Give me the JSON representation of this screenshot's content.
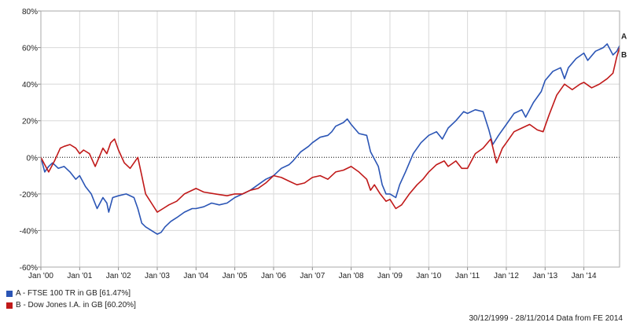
{
  "colors": {
    "series_a": "#2b55b5",
    "series_b": "#c01919",
    "grid": "#d8d8d8"
  },
  "legend": [
    {
      "label": "A - FTSE 100 TR in GB [61.47%]",
      "color": "#2b55b5"
    },
    {
      "label": "B - Dow Jones I.A. in GB [60.20%]",
      "color": "#c01919"
    }
  ],
  "footer": "30/12/1999 - 28/11/2014 Data from FE 2014",
  "chart_data": {
    "type": "line",
    "x_ticks": [
      "Jan '00",
      "Jan '01",
      "Jan '02",
      "Jan '03",
      "Jan '04",
      "Jan '05",
      "Jan '06",
      "Jan '07",
      "Jan '08",
      "Jan '09",
      "Jan '10",
      "Jan '11",
      "Jan '12",
      "Jan '13",
      "Jan '14"
    ],
    "y_ticks": [
      "-60%",
      "-40%",
      "-20%",
      "0%",
      "20%",
      "40%",
      "60%",
      "80%"
    ],
    "ylim": [
      -60,
      80
    ],
    "xlim": [
      2000.0,
      2014.92
    ],
    "zero_line": true,
    "grid": true,
    "end_labels": [
      "A",
      "B"
    ],
    "series": [
      {
        "name": "A - FTSE 100 TR in GB",
        "end_label": "A",
        "x": [
          2000.0,
          2000.1,
          2000.2,
          2000.3,
          2000.45,
          2000.6,
          2000.75,
          2000.9,
          2001.0,
          2001.15,
          2001.3,
          2001.45,
          2001.6,
          2001.7,
          2001.75,
          2001.85,
          2002.0,
          2002.2,
          2002.4,
          2002.5,
          2002.6,
          2002.7,
          2002.85,
          2003.0,
          2003.1,
          2003.2,
          2003.35,
          2003.5,
          2003.7,
          2003.9,
          2004.0,
          2004.2,
          2004.4,
          2004.6,
          2004.8,
          2005.0,
          2005.2,
          2005.4,
          2005.6,
          2005.8,
          2006.0,
          2006.2,
          2006.4,
          2006.5,
          2006.7,
          2006.9,
          2007.0,
          2007.2,
          2007.4,
          2007.5,
          2007.6,
          2007.8,
          2007.9,
          2008.0,
          2008.2,
          2008.4,
          2008.5,
          2008.7,
          2008.8,
          2008.9,
          2009.0,
          2009.15,
          2009.25,
          2009.4,
          2009.6,
          2009.8,
          2010.0,
          2010.2,
          2010.35,
          2010.5,
          2010.7,
          2010.9,
          2011.0,
          2011.2,
          2011.4,
          2011.55,
          2011.65,
          2011.8,
          2012.0,
          2012.2,
          2012.4,
          2012.5,
          2012.7,
          2012.9,
          2013.0,
          2013.2,
          2013.4,
          2013.5,
          2013.6,
          2013.8,
          2014.0,
          2014.1,
          2014.3,
          2014.5,
          2014.6,
          2014.75,
          2014.85,
          2014.92
        ],
        "values": [
          0,
          -8,
          -5,
          -3,
          -6,
          -5,
          -8,
          -12,
          -10,
          -16,
          -20,
          -28,
          -22,
          -25,
          -30,
          -22,
          -21,
          -20,
          -22,
          -28,
          -36,
          -38,
          -40,
          -42,
          -41,
          -38,
          -35,
          -33,
          -30,
          -28,
          -28,
          -27,
          -25,
          -26,
          -25,
          -22,
          -20,
          -18,
          -15,
          -12,
          -10,
          -6,
          -4,
          -2,
          3,
          6,
          8,
          11,
          12,
          14,
          17,
          19,
          21,
          18,
          13,
          12,
          3,
          -5,
          -15,
          -20,
          -20,
          -22,
          -15,
          -8,
          2,
          8,
          12,
          14,
          10,
          16,
          20,
          25,
          24,
          26,
          25,
          15,
          7,
          12,
          18,
          24,
          26,
          22,
          30,
          36,
          42,
          47,
          49,
          43,
          49,
          54,
          57,
          53,
          58,
          60,
          62,
          56,
          58,
          61
        ]
      },
      {
        "name": "B - Dow Jones I.A. in GB",
        "end_label": "B",
        "x": [
          2000.0,
          2000.1,
          2000.2,
          2000.35,
          2000.5,
          2000.6,
          2000.75,
          2000.9,
          2001.0,
          2001.1,
          2001.25,
          2001.4,
          2001.5,
          2001.6,
          2001.7,
          2001.8,
          2001.9,
          2002.0,
          2002.15,
          2002.3,
          2002.5,
          2002.6,
          2002.7,
          2002.85,
          2003.0,
          2003.15,
          2003.3,
          2003.5,
          2003.7,
          2004.0,
          2004.2,
          2004.5,
          2004.8,
          2005.0,
          2005.2,
          2005.4,
          2005.6,
          2005.8,
          2006.0,
          2006.2,
          2006.4,
          2006.6,
          2006.8,
          2007.0,
          2007.2,
          2007.4,
          2007.6,
          2007.8,
          2008.0,
          2008.2,
          2008.4,
          2008.5,
          2008.6,
          2008.75,
          2008.9,
          2009.0,
          2009.15,
          2009.3,
          2009.5,
          2009.7,
          2009.85,
          2010.0,
          2010.2,
          2010.4,
          2010.5,
          2010.7,
          2010.85,
          2011.0,
          2011.2,
          2011.4,
          2011.6,
          2011.75,
          2011.9,
          2012.0,
          2012.2,
          2012.4,
          2012.6,
          2012.8,
          2012.95,
          2013.1,
          2013.3,
          2013.5,
          2013.7,
          2013.9,
          2014.0,
          2014.2,
          2014.4,
          2014.6,
          2014.75,
          2014.85,
          2014.92
        ],
        "values": [
          0,
          -4,
          -8,
          -2,
          5,
          6,
          7,
          5,
          2,
          4,
          2,
          -5,
          0,
          5,
          2,
          8,
          10,
          4,
          -3,
          -6,
          0,
          -10,
          -20,
          -25,
          -30,
          -28,
          -26,
          -24,
          -20,
          -17,
          -19,
          -20,
          -21,
          -20,
          -20,
          -18,
          -17,
          -14,
          -10,
          -11,
          -13,
          -15,
          -14,
          -11,
          -10,
          -12,
          -8,
          -7,
          -5,
          -8,
          -12,
          -18,
          -15,
          -20,
          -24,
          -23,
          -28,
          -26,
          -20,
          -15,
          -12,
          -8,
          -4,
          -2,
          -5,
          -2,
          -6,
          -6,
          2,
          5,
          10,
          -3,
          5,
          8,
          14,
          16,
          18,
          15,
          14,
          23,
          34,
          40,
          37,
          40,
          41,
          38,
          40,
          43,
          46,
          55,
          60
        ]
      }
    ]
  }
}
